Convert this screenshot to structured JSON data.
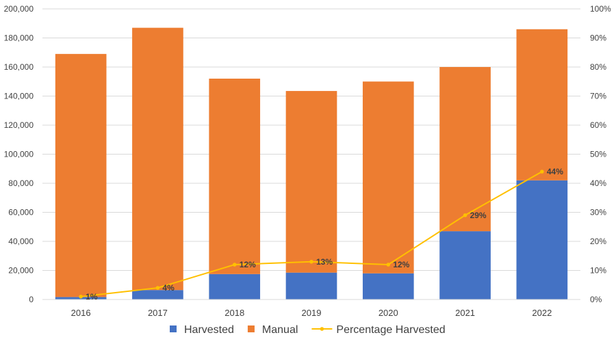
{
  "chart_data": {
    "type": "bar",
    "stacked": true,
    "categories": [
      "2016",
      "2017",
      "2018",
      "2019",
      "2020",
      "2021",
      "2022"
    ],
    "series": [
      {
        "name": "Harvested",
        "type": "bar",
        "axis": "left",
        "color": "#4472c4",
        "values": [
          1700,
          6500,
          17500,
          18500,
          18000,
          47000,
          82000
        ]
      },
      {
        "name": "Manual",
        "type": "bar",
        "axis": "left",
        "color": "#ed7d31",
        "values": [
          167300,
          180500,
          134500,
          125000,
          132000,
          113000,
          104000
        ]
      },
      {
        "name": "Percentage Harvested",
        "type": "line",
        "axis": "right",
        "color": "#ffc000",
        "values": [
          1,
          4,
          12,
          13,
          12,
          29,
          44
        ],
        "data_labels": [
          "1%",
          "4%",
          "12%",
          "13%",
          "12%",
          "29%",
          "44%"
        ]
      }
    ],
    "y_left": {
      "min": 0,
      "max": 200000,
      "step": 20000,
      "tick_labels": [
        "0",
        "20,000",
        "40,000",
        "60,000",
        "80,000",
        "100,000",
        "120,000",
        "140,000",
        "160,000",
        "180,000",
        "200,000"
      ]
    },
    "y_right": {
      "min": 0,
      "max": 100,
      "step": 10,
      "tick_labels": [
        "0%",
        "10%",
        "20%",
        "30%",
        "40%",
        "50%",
        "60%",
        "70%",
        "80%",
        "90%",
        "100%"
      ]
    },
    "grid": true,
    "legend_position": "bottom"
  }
}
